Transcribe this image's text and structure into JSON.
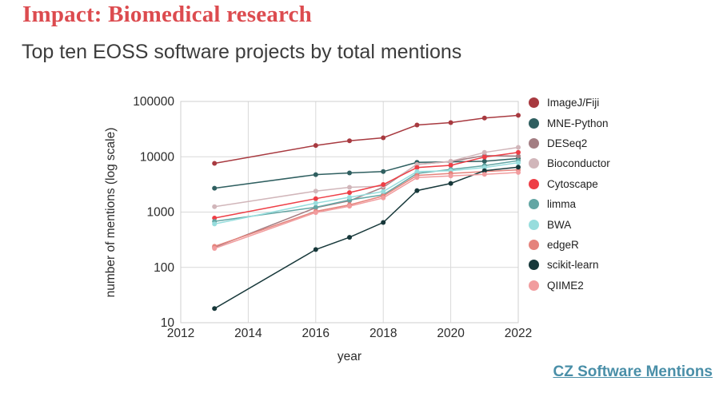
{
  "header": {
    "title": "Impact: Biomedical research",
    "subtitle": "Top ten EOSS software projects by total mentions"
  },
  "footer": {
    "link_label": "CZ Software Mentions"
  },
  "colors": {
    "title": "#dc4b4f",
    "subtitle": "#3c3c3c",
    "link": "#4a8fa8",
    "grid": "#d9d9d9",
    "plot_border": "#cfcfcf",
    "axis_text": "#2b2b2b"
  },
  "chart_data": {
    "type": "line",
    "title": "Top ten EOSS software projects by total mentions",
    "xlabel": "year",
    "ylabel": "number of mentions (log scale)",
    "y_scale": "log",
    "xlim": [
      2012,
      2022
    ],
    "ylim": [
      10,
      100000
    ],
    "x_ticks": [
      2012,
      2014,
      2016,
      2018,
      2020,
      2022
    ],
    "y_ticks": [
      10,
      100,
      1000,
      10000,
      100000
    ],
    "grid": true,
    "legend_position": "right",
    "x": [
      2013,
      2016,
      2017,
      2018,
      2019,
      2020,
      2021,
      2022
    ],
    "series": [
      {
        "name": "ImageJ/Fiji",
        "color": "#a83a40",
        "values": [
          7600,
          16000,
          19500,
          22000,
          37500,
          41500,
          50000,
          56000
        ]
      },
      {
        "name": "MNE-Python",
        "color": "#2f5f60",
        "values": [
          2700,
          4750,
          5100,
          5400,
          7900,
          8100,
          8300,
          9300
        ]
      },
      {
        "name": "DESeq2",
        "color": "#a37d82",
        "values": [
          230,
          1200,
          1600,
          2800,
          7300,
          8200,
          10500,
          10300
        ]
      },
      {
        "name": "Bioconductor",
        "color": "#d1b6ba",
        "values": [
          1250,
          2400,
          2800,
          2950,
          7200,
          8300,
          12000,
          14800
        ]
      },
      {
        "name": "Cytoscape",
        "color": "#ee3e46",
        "values": [
          780,
          1750,
          2250,
          3150,
          6400,
          7000,
          9900,
          12000
        ]
      },
      {
        "name": "limma",
        "color": "#63a6a4",
        "values": [
          680,
          1220,
          1650,
          2050,
          5000,
          5900,
          6900,
          8500
        ]
      },
      {
        "name": "BWA",
        "color": "#97dddd",
        "values": [
          610,
          1450,
          1850,
          2350,
          5400,
          5600,
          6400,
          7800
        ]
      },
      {
        "name": "edgeR",
        "color": "#e5837c",
        "values": [
          240,
          1030,
          1350,
          1950,
          4600,
          5000,
          5400,
          5800
        ]
      },
      {
        "name": "scikit-learn",
        "color": "#17383a",
        "values": [
          18,
          210,
          350,
          650,
          2450,
          3300,
          5600,
          6500
        ]
      },
      {
        "name": "QIIME2",
        "color": "#f19c9e",
        "values": [
          220,
          980,
          1280,
          1800,
          4200,
          4500,
          4800,
          5200
        ]
      }
    ]
  }
}
